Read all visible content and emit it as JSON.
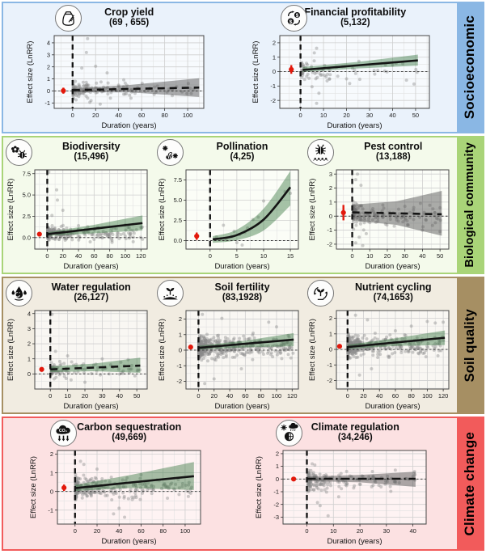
{
  "figure": {
    "description": "Effect size (LnRR) of diversified farming versus duration for ecosystem services, grouped in four categories"
  },
  "colors": {
    "trend": "#141414",
    "scatter": "#8a8a8a",
    "summary_point": "#e2180b",
    "band_green": "rgba(45,112,55,0.42)",
    "band_gray": "rgba(70,70,70,0.45)",
    "panel_bg": "rgba(255,255,255,0.6)",
    "grid_major": "#cfcfcf",
    "grid_minor": "#e2e2e2",
    "panel_border": "#474747"
  },
  "rows": [
    {
      "category": "Socioeconomic",
      "accent": "#8ab7e4",
      "bg": "#eaf2fb"
    },
    {
      "category": "Biological community",
      "accent": "#a9d478",
      "bg": "#f4faeb"
    },
    {
      "category": "Soil quality",
      "accent": "#a68f63",
      "bg": "#f1ece1"
    },
    {
      "category": "Climate change",
      "accent": "#f25b5b",
      "bg": "#fce1e2"
    }
  ],
  "chart_data": [
    {
      "type": "scatter",
      "row": 0,
      "title": "Crop yield",
      "counts": "(69 , 655)",
      "icon": "sack-wheat-icon",
      "xlabel": "Duration (years)",
      "ylabel": "Effect size (LnRR)",
      "xlim": [
        -16,
        114
      ],
      "ylim": [
        -1.45,
        4.6
      ],
      "xticks": [
        0,
        20,
        40,
        60,
        80,
        100
      ],
      "yticks": [
        -1,
        0,
        1,
        2,
        3,
        4
      ],
      "band": {
        "color": "gray",
        "anchors": [
          [
            0,
            -0.1,
            0.22
          ],
          [
            50,
            -0.12,
            0.5
          ],
          [
            110,
            -0.5,
            1.05
          ]
        ]
      },
      "trend": {
        "style": "dashed",
        "points": [
          [
            0,
            0.07
          ],
          [
            110,
            0.28
          ]
        ]
      },
      "summary_point": {
        "x": -8,
        "y": 0.02,
        "err": 0.25
      },
      "scatter": {
        "seed": 11,
        "n": 150,
        "x_max": 110,
        "x_pow": 2.6,
        "y_mean": 0.12,
        "y_sd": 0.48,
        "outliers": [
          [
            13,
            4.35
          ],
          [
            12,
            3.2
          ],
          [
            20,
            2.05
          ],
          [
            8,
            1.9
          ],
          [
            30,
            1.5
          ],
          [
            24,
            -1.1
          ],
          [
            15,
            -0.95
          ]
        ]
      }
    },
    {
      "type": "scatter",
      "row": 0,
      "title": "Financial profitability",
      "counts": "(5,132)",
      "icon": "coins-dollar-icon",
      "xlabel": "Duration (years)",
      "ylabel": "Effect size (LnRR)",
      "xlim": [
        -9,
        56
      ],
      "ylim": [
        -2.55,
        2.5
      ],
      "xticks": [
        0,
        10,
        20,
        30,
        40,
        50
      ],
      "yticks": [
        -2,
        -1,
        0,
        1,
        2
      ],
      "band": {
        "color": "green",
        "anchors": [
          [
            1,
            -0.03,
            0.32
          ],
          [
            25,
            0.22,
            0.68
          ],
          [
            51,
            0.42,
            1.18
          ]
        ]
      },
      "trend": {
        "style": "solid",
        "points": [
          [
            1,
            0.12
          ],
          [
            51,
            0.78
          ]
        ]
      },
      "summary_point": {
        "x": -4,
        "y": 0.15,
        "err": 0.3
      },
      "scatter": {
        "seed": 22,
        "n": 75,
        "x_max": 51,
        "x_pow": 3.0,
        "y_mean": 0.1,
        "y_sd": 0.55,
        "outliers": [
          [
            7,
            1.62
          ],
          [
            6,
            1.3
          ],
          [
            8,
            -1.5
          ],
          [
            7,
            -2.2
          ],
          [
            5,
            -1.05
          ],
          [
            20,
            -0.5
          ],
          [
            40,
            0.45
          ]
        ]
      }
    },
    {
      "type": "scatter",
      "row": 1,
      "title": "Biodiversity",
      "counts": "(15,496)",
      "icon": "flower-bug-icon",
      "xlabel": "Duration (years)",
      "ylabel": "Effect size (LnRR)",
      "xlim": [
        -16,
        128
      ],
      "ylim": [
        -1.35,
        7.95
      ],
      "xticks": [
        0,
        20,
        40,
        60,
        80,
        100,
        120
      ],
      "yticks": [
        0,
        2.5,
        5,
        7.5
      ],
      "ytick_labels": [
        "0.0",
        "2.5",
        "5.0",
        "7.5"
      ],
      "band": {
        "color": "green",
        "anchors": [
          [
            0,
            0.18,
            0.62
          ],
          [
            60,
            0.5,
            1.5
          ],
          [
            122,
            0.85,
            2.6
          ]
        ]
      },
      "trend": {
        "style": "solid",
        "points": [
          [
            0,
            0.4
          ],
          [
            122,
            1.7
          ]
        ]
      },
      "summary_point": {
        "x": -10,
        "y": 0.4,
        "err": 0.1
      },
      "scatter": {
        "seed": 33,
        "n": 240,
        "x_max": 122,
        "x_pow": 3.0,
        "y_mean": 0.45,
        "y_sd": 0.55,
        "outliers": [
          [
            2,
            7.7
          ],
          [
            12,
            5.6
          ],
          [
            13,
            4.4
          ],
          [
            20,
            3.2
          ],
          [
            6,
            2.6
          ],
          [
            40,
            1.4
          ],
          [
            55,
            -0.5
          ],
          [
            100,
            1.5
          ],
          [
            110,
            0.8
          ],
          [
            120,
            1.2
          ]
        ]
      }
    },
    {
      "type": "scatter",
      "row": 1,
      "title": "Pollination",
      "counts": "(4,25)",
      "icon": "bee-flowers-icon",
      "xlabel": "Duration (years)",
      "ylabel": "Effect size (LnRR)",
      "xlim": [
        -4.5,
        16.5
      ],
      "ylim": [
        -1.05,
        8.75
      ],
      "xticks": [
        0,
        5,
        10,
        15
      ],
      "yticks": [
        0,
        2.5,
        5,
        7.5
      ],
      "ytick_labels": [
        "0.0",
        "2.5",
        "5.0",
        "7.5"
      ],
      "band": {
        "color": "green",
        "smooth": true,
        "anchors": [
          [
            0.5,
            -0.28,
            0.55
          ],
          [
            5,
            0.05,
            1.35
          ],
          [
            10,
            1.25,
            3.95
          ],
          [
            15,
            4.35,
            8.6
          ]
        ]
      },
      "trend": {
        "style": "solid",
        "smooth": true,
        "points": [
          [
            0.5,
            0.15
          ],
          [
            5,
            0.68
          ],
          [
            10,
            2.6
          ],
          [
            15,
            6.6
          ]
        ]
      },
      "summary_point": {
        "x": -2.5,
        "y": 0.55,
        "err": 0.45
      },
      "scatter": {
        "seed": 43,
        "points": [
          [
            0.8,
            0.15
          ],
          [
            1.2,
            0.45
          ],
          [
            2,
            0.25
          ],
          [
            2.5,
            1.9
          ],
          [
            3,
            0.1
          ],
          [
            4,
            0.5
          ],
          [
            4.5,
            1.15
          ],
          [
            5,
            -0.25
          ],
          [
            5.5,
            0.75
          ],
          [
            6,
            -0.55
          ],
          [
            6.5,
            1.0
          ],
          [
            7,
            1.55
          ],
          [
            8,
            2.6
          ],
          [
            9,
            2.9
          ],
          [
            10,
            4.9
          ],
          [
            14,
            6.05
          ],
          [
            15,
            5.85
          ]
        ]
      }
    },
    {
      "type": "scatter",
      "row": 1,
      "title": "Pest control",
      "counts": "(13,188)",
      "icon": "bug-ants-icon",
      "xlabel": "Duration (years)",
      "ylabel": "Effect size (LnRR)",
      "xlim": [
        -9,
        55
      ],
      "ylim": [
        -2.35,
        3.3
      ],
      "xticks": [
        0,
        10,
        20,
        30,
        40,
        50
      ],
      "yticks": [
        -2,
        -1,
        0,
        1,
        2,
        3
      ],
      "band": {
        "color": "gray",
        "anchors": [
          [
            0,
            -0.32,
            0.82
          ],
          [
            25,
            -0.62,
            1.05
          ],
          [
            51,
            -1.4,
            1.8
          ]
        ]
      },
      "trend": {
        "style": "dashed",
        "points": [
          [
            0,
            0.27
          ],
          [
            51,
            0.13
          ]
        ]
      },
      "summary_point": {
        "x": -5,
        "y": 0.25,
        "err": 0.55
      },
      "scatter": {
        "seed": 44,
        "n": 150,
        "x_max": 51,
        "x_pow": 3.0,
        "y_mean": 0.1,
        "y_sd": 0.6,
        "outliers": [
          [
            3,
            3.0
          ],
          [
            2,
            2.6
          ],
          [
            5,
            2.2
          ],
          [
            2,
            -1.9
          ],
          [
            4,
            -1.5
          ],
          [
            8,
            -1.25
          ],
          [
            30,
            0.7
          ],
          [
            40,
            -1.0
          ],
          [
            50,
            0.6
          ],
          [
            50,
            -1.1
          ],
          [
            6,
            -2.1
          ]
        ]
      }
    },
    {
      "type": "scatter",
      "row": 2,
      "title": "Water regulation",
      "counts": "(26,127)",
      "icon": "water-drops-icon",
      "xlabel": "Duration (years)",
      "ylabel": "Effect size (LnRR)",
      "xlim": [
        -9,
        56
      ],
      "ylim": [
        -1.0,
        4.2
      ],
      "xticks": [
        0,
        10,
        20,
        30,
        40,
        50
      ],
      "yticks": [
        0,
        1,
        2,
        3,
        4
      ],
      "band": {
        "color": "green",
        "anchors": [
          [
            0,
            0.12,
            0.5
          ],
          [
            25,
            0.18,
            0.68
          ],
          [
            52,
            0.08,
            1.08
          ]
        ]
      },
      "trend": {
        "style": "dashed",
        "points": [
          [
            0,
            0.3
          ],
          [
            52,
            0.55
          ]
        ]
      },
      "summary_point": {
        "x": -5,
        "y": 0.3,
        "err": 0.08
      },
      "scatter": {
        "seed": 55,
        "n": 95,
        "x_max": 52,
        "x_pow": 2.4,
        "y_mean": 0.3,
        "y_sd": 0.35,
        "outliers": [
          [
            1,
            3.95
          ],
          [
            3,
            1.5
          ],
          [
            10,
            1.2
          ],
          [
            30,
            1.0
          ],
          [
            45,
            0.95
          ],
          [
            12,
            -0.4
          ],
          [
            20,
            -0.55
          ]
        ]
      }
    },
    {
      "type": "scatter",
      "row": 2,
      "title": "Soil fertility",
      "counts": "(83,1928)",
      "icon": "soil-sprout-icon",
      "xlabel": "Duration (years)",
      "ylabel": "Effect size (LnRR)",
      "xlim": [
        -16,
        128
      ],
      "ylim": [
        -2.5,
        2.55
      ],
      "xticks": [
        0,
        20,
        40,
        60,
        80,
        100,
        120
      ],
      "yticks": [
        -2,
        -1,
        0,
        1,
        2
      ],
      "band": {
        "color": "green",
        "anchors": [
          [
            0,
            0.04,
            0.28
          ],
          [
            60,
            0.18,
            0.62
          ],
          [
            122,
            0.25,
            1.1
          ]
        ]
      },
      "trend": {
        "style": "solid",
        "points": [
          [
            0,
            0.15
          ],
          [
            122,
            0.68
          ]
        ]
      },
      "summary_point": {
        "x": -10,
        "y": 0.2,
        "err": 0.1
      },
      "scatter": {
        "seed": 66,
        "n": 480,
        "x_max": 122,
        "x_pow": 2.9,
        "y_mean": 0.18,
        "y_sd": 0.5,
        "outliers": [
          [
            5,
            2.3
          ],
          [
            30,
            2.05
          ],
          [
            90,
            1.8
          ],
          [
            100,
            1.5
          ],
          [
            115,
            0.95
          ],
          [
            8,
            -2.15
          ],
          [
            20,
            -1.85
          ],
          [
            55,
            -1.2
          ],
          [
            70,
            1.1
          ]
        ]
      }
    },
    {
      "type": "scatter",
      "row": 2,
      "title": "Nutrient cycling",
      "counts": "(74,1653)",
      "icon": "plant-cycle-icon",
      "xlabel": "Duration (years)",
      "ylabel": "Effect size (LnRR)",
      "xlim": [
        -14,
        127
      ],
      "ylim": [
        -2.55,
        2.5
      ],
      "xticks": [
        0,
        20,
        40,
        60,
        80,
        100,
        120
      ],
      "yticks": [
        -2,
        -1,
        0,
        1,
        2
      ],
      "band": {
        "color": "green",
        "anchors": [
          [
            0,
            0.04,
            0.3
          ],
          [
            60,
            0.22,
            0.72
          ],
          [
            122,
            0.28,
            1.22
          ]
        ]
      },
      "trend": {
        "style": "solid",
        "points": [
          [
            0,
            0.15
          ],
          [
            122,
            0.75
          ]
        ]
      },
      "summary_point": {
        "x": -10,
        "y": 0.2,
        "err": 0.1
      },
      "scatter": {
        "seed": 77,
        "n": 420,
        "x_max": 122,
        "x_pow": 3.1,
        "y_mean": 0.2,
        "y_sd": 0.5,
        "outliers": [
          [
            10,
            2.2
          ],
          [
            25,
            1.9
          ],
          [
            100,
            1.8
          ],
          [
            110,
            1.7
          ],
          [
            120,
            1.75
          ],
          [
            15,
            -1.65
          ],
          [
            30,
            -1.25
          ],
          [
            60,
            1.2
          ],
          [
            80,
            1.5
          ]
        ]
      }
    },
    {
      "type": "scatter",
      "row": 3,
      "title": "Carbon sequestration",
      "counts": "(49,669)",
      "icon": "co2-cloud-icon",
      "xlabel": "Duration (years)",
      "ylabel": "Effect size (LnRR)",
      "xlim": [
        -16,
        114
      ],
      "ylim": [
        -1.75,
        2.2
      ],
      "xticks": [
        0,
        20,
        40,
        60,
        80,
        100
      ],
      "yticks": [
        -1,
        0,
        1,
        2
      ],
      "band": {
        "color": "green",
        "anchors": [
          [
            0,
            0.03,
            0.35
          ],
          [
            50,
            0.18,
            0.88
          ],
          [
            108,
            0.08,
            1.58
          ]
        ]
      },
      "trend": {
        "style": "solid",
        "points": [
          [
            0,
            0.18
          ],
          [
            108,
            0.82
          ]
        ]
      },
      "summary_point": {
        "x": -10,
        "y": 0.2,
        "err": 0.17
      },
      "scatter": {
        "seed": 88,
        "n": 280,
        "x_max": 108,
        "x_pow": 2.7,
        "y_mean": 0.18,
        "y_sd": 0.42,
        "outliers": [
          [
            5,
            1.62
          ],
          [
            8,
            1.45
          ],
          [
            20,
            1.2
          ],
          [
            40,
            -0.9
          ],
          [
            45,
            -1.38
          ],
          [
            60,
            0.9
          ],
          [
            105,
            0.12
          ],
          [
            35,
            -1.2
          ]
        ]
      }
    },
    {
      "type": "scatter",
      "row": 3,
      "title": "Climate regulation",
      "counts": "(34,246)",
      "icon": "sun-rain-globe-icon",
      "xlabel": "Duration (years)",
      "ylabel": "Effect size (LnRR)",
      "xlim": [
        -9,
        45
      ],
      "ylim": [
        -3.55,
        2.25
      ],
      "xticks": [
        0,
        10,
        20,
        30,
        40
      ],
      "yticks": [
        -3,
        -2,
        -1,
        0,
        1,
        2
      ],
      "band": {
        "color": "gray",
        "anchors": [
          [
            0,
            -0.16,
            0.2
          ],
          [
            20,
            -0.26,
            0.32
          ],
          [
            41,
            -0.62,
            0.58
          ]
        ]
      },
      "trend": {
        "style": "dashdot",
        "points": [
          [
            0,
            0.02
          ],
          [
            41,
            0.02
          ]
        ]
      },
      "summary_point": {
        "x": -5,
        "y": 0.0,
        "err": 0.08
      },
      "scatter": {
        "seed": 99,
        "n": 170,
        "x_max": 41,
        "x_pow": 3.2,
        "y_mean": -0.15,
        "y_sd": 0.55,
        "outliers": [
          [
            2,
            1.2
          ],
          [
            3,
            1.1
          ],
          [
            5,
            -2.1
          ],
          [
            8,
            -2.9
          ],
          [
            4,
            -1.85
          ],
          [
            15,
            0.6
          ],
          [
            25,
            -0.5
          ],
          [
            40,
            0.2
          ],
          [
            12,
            -1.4
          ]
        ]
      }
    }
  ]
}
